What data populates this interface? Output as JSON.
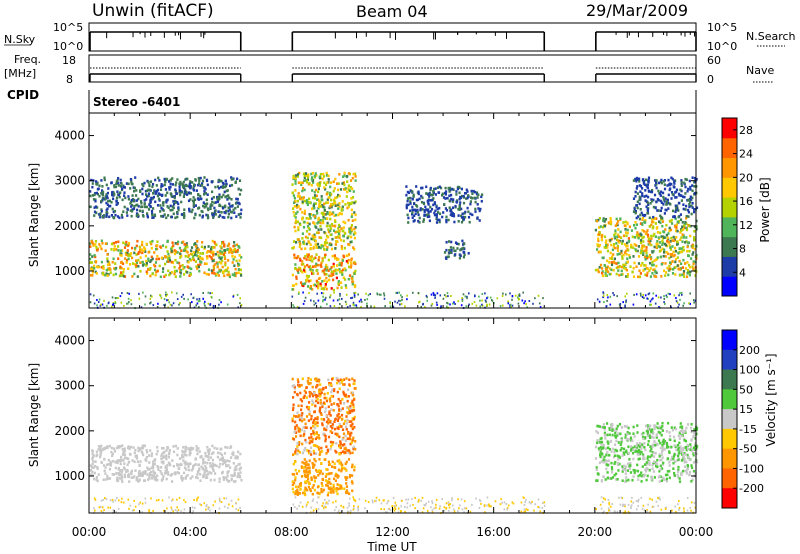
{
  "header": {
    "radar": "Unwin (fitACF)",
    "beam": "Beam 04",
    "date": "29/Mar/2009",
    "program": "Stereo -6401"
  },
  "strip_labels": {
    "nsky": "N.Sky",
    "nsearch": "N.Search",
    "freq": "Freq.",
    "mhz": "[MHz]",
    "nave": "Nave",
    "cpid": "CPID"
  },
  "strip_ticks": {
    "nsky_left": [
      "10^5",
      "10^0"
    ],
    "nsky_right": [
      "10^5",
      "10^0"
    ],
    "freq_left": [
      "18",
      "8"
    ],
    "nave_right": [
      "60",
      "0"
    ]
  },
  "colors": {
    "power": [
      "#0000ff",
      "#1e3ca8",
      "#3c7850",
      "#50b45a",
      "#b4d200",
      "#ffc800",
      "#ff9600",
      "#ff6400",
      "#ff0000"
    ],
    "velocity": [
      "#0000ff",
      "#2040c0",
      "#3c7850",
      "#50c83c",
      "#c8c8c8",
      "#ffc800",
      "#ff9600",
      "#ff6400",
      "#ff0000"
    ]
  },
  "chart_data": [
    {
      "type": "heatmap",
      "name": "power",
      "xlabel": "Time UT",
      "ylabel": "Slant Range [km]",
      "x_ticks": [
        "00:00",
        "04:00",
        "08:00",
        "12:00",
        "16:00",
        "20:00",
        "00:00"
      ],
      "xlim_hours": [
        0,
        24
      ],
      "ylim": [
        180,
        4500
      ],
      "y_ticks": [
        1000,
        2000,
        3000,
        4000
      ],
      "colorbar": {
        "label": "Power [dB]",
        "ticks": [
          4,
          8,
          12,
          16,
          20,
          24,
          28
        ],
        "range": [
          0,
          30
        ]
      },
      "data_gaps_hours": [
        [
          6,
          8
        ],
        [
          18,
          20
        ]
      ],
      "echo_regions": [
        {
          "t": [
            0,
            6
          ],
          "range_km": [
            900,
            1700
          ],
          "power_db": [
            8,
            26
          ]
        },
        {
          "t": [
            0,
            6
          ],
          "range_km": [
            2200,
            3100
          ],
          "power_db": [
            4,
            10
          ]
        },
        {
          "t": [
            8,
            10.5
          ],
          "range_km": [
            1500,
            3200
          ],
          "power_db": [
            8,
            22
          ]
        },
        {
          "t": [
            8,
            10.5
          ],
          "range_km": [
            600,
            1400
          ],
          "power_db": [
            10,
            28
          ]
        },
        {
          "t": [
            12.5,
            15.5
          ],
          "range_km": [
            2100,
            2900
          ],
          "power_db": [
            4,
            8
          ]
        },
        {
          "t": [
            14,
            15
          ],
          "range_km": [
            1300,
            1700
          ],
          "power_db": [
            4,
            10
          ]
        },
        {
          "t": [
            20,
            24
          ],
          "range_km": [
            900,
            2200
          ],
          "power_db": [
            8,
            24
          ]
        },
        {
          "t": [
            21.5,
            24
          ],
          "range_km": [
            2200,
            3100
          ],
          "power_db": [
            4,
            8
          ]
        }
      ]
    },
    {
      "type": "heatmap",
      "name": "velocity",
      "xlabel": "Time UT",
      "ylabel": "Slant Range [km]",
      "x_ticks": [
        "00:00",
        "04:00",
        "08:00",
        "12:00",
        "16:00",
        "20:00",
        "00:00"
      ],
      "xlim_hours": [
        0,
        24
      ],
      "ylim": [
        180,
        4500
      ],
      "y_ticks": [
        1000,
        2000,
        3000,
        4000
      ],
      "colorbar": {
        "label": "Velocity [m s⁻¹]",
        "ticks": [
          200,
          100,
          50,
          15,
          -15,
          -50,
          -100,
          -200
        ]
      },
      "data_gaps_hours": [
        [
          6,
          8
        ],
        [
          18,
          20
        ]
      ],
      "echo_regions": [
        {
          "t": [
            0,
            6
          ],
          "range_km": [
            900,
            1700
          ],
          "velocity": [
            -15,
            15
          ]
        },
        {
          "t": [
            8,
            10.5
          ],
          "range_km": [
            600,
            1400
          ],
          "velocity": [
            -100,
            -30
          ]
        },
        {
          "t": [
            8,
            10.5
          ],
          "range_km": [
            1500,
            3200
          ],
          "velocity": [
            -200,
            15
          ]
        },
        {
          "t": [
            20,
            24
          ],
          "range_km": [
            900,
            2200
          ],
          "velocity": [
            -15,
            50
          ]
        }
      ]
    }
  ]
}
